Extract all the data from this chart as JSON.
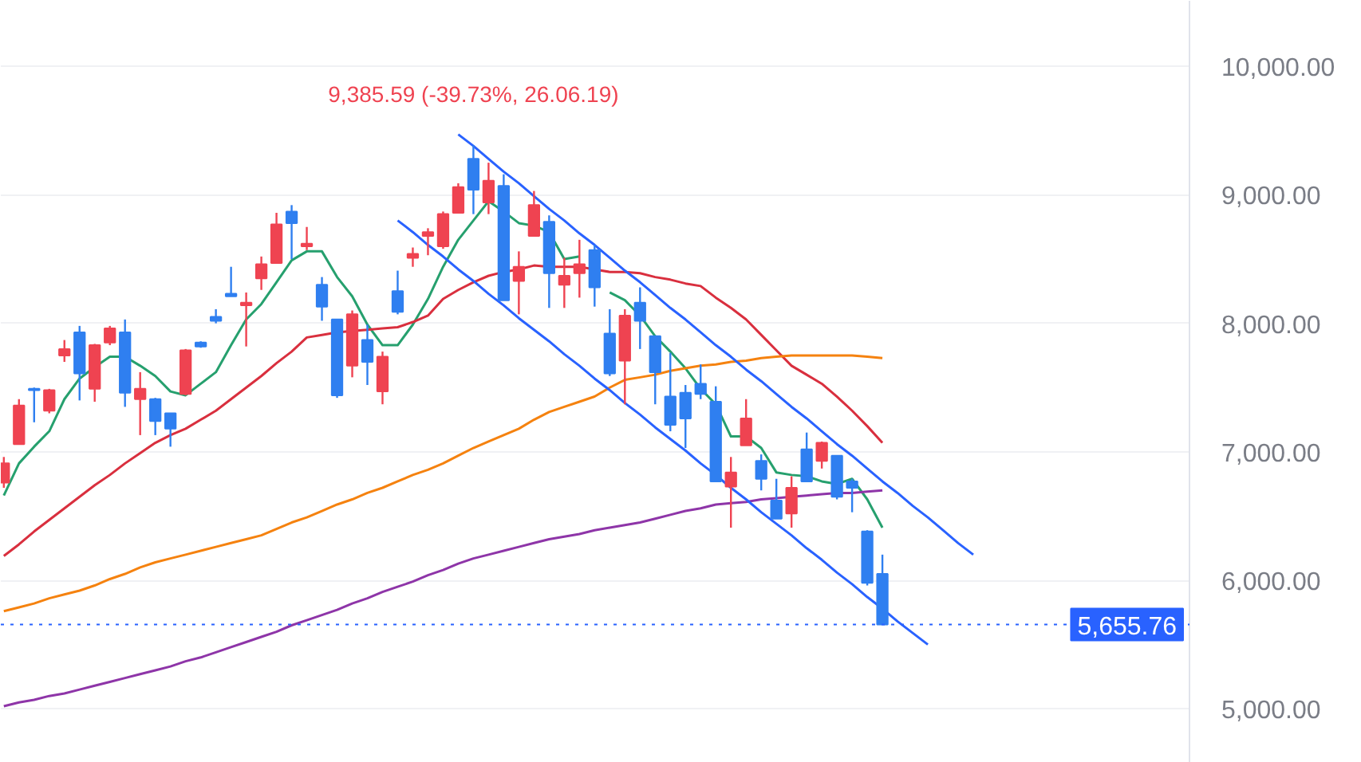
{
  "chart_data": {
    "type": "candlestick",
    "categories": [
      null,
      null,
      null,
      null,
      null,
      null,
      null,
      null,
      null,
      null,
      null,
      null,
      null,
      null,
      null,
      null,
      null,
      null,
      null,
      null,
      null,
      null,
      null,
      null,
      null,
      null,
      null,
      null,
      null,
      null,
      null,
      null,
      null,
      null,
      null,
      null,
      null,
      null,
      null,
      null,
      null,
      null,
      null,
      null,
      null,
      null,
      null,
      null,
      null,
      null,
      null,
      null,
      null,
      null,
      null,
      null,
      null,
      null,
      null,
      null,
      null,
      null,
      null,
      null,
      null
    ],
    "ohlc": [
      [
        6760,
        6960,
        6720,
        6910
      ],
      [
        7060,
        7410,
        7060,
        7360
      ],
      [
        7490,
        7500,
        7230,
        7480
      ],
      [
        7320,
        7490,
        7300,
        7480
      ],
      [
        7750,
        7870,
        7700,
        7800
      ],
      [
        7930,
        7980,
        7400,
        7610
      ],
      [
        7490,
        7840,
        7390,
        7830
      ],
      [
        7850,
        7980,
        7830,
        7960
      ],
      [
        7930,
        8030,
        7350,
        7460
      ],
      [
        7410,
        7620,
        7130,
        7490
      ],
      [
        7410,
        7420,
        7130,
        7240
      ],
      [
        7300,
        7300,
        7040,
        7180
      ],
      [
        7450,
        7800,
        7440,
        7790
      ],
      [
        7850,
        7860,
        7810,
        7820
      ],
      [
        8050,
        8110,
        8000,
        8020
      ],
      [
        8230,
        8440,
        8210,
        8210
      ],
      [
        8140,
        8240,
        7820,
        8160
      ],
      [
        8350,
        8520,
        8260,
        8460
      ],
      [
        8470,
        8860,
        8470,
        8770
      ],
      [
        8870,
        8920,
        8500,
        8780
      ],
      [
        8600,
        8750,
        8570,
        8620
      ],
      [
        8300,
        8360,
        8020,
        8130
      ],
      [
        8030,
        8030,
        7420,
        7440
      ],
      [
        7670,
        8100,
        7580,
        8070
      ],
      [
        7870,
        7990,
        7520,
        7700
      ],
      [
        7470,
        7780,
        7370,
        7740
      ],
      [
        8250,
        8410,
        8070,
        8090
      ],
      [
        8510,
        8590,
        8440,
        8540
      ],
      [
        8680,
        8740,
        8530,
        8710
      ],
      [
        8600,
        8870,
        8580,
        8850
      ],
      [
        8860,
        9090,
        8860,
        9060
      ],
      [
        9280,
        9385.59,
        8850,
        9040
      ],
      [
        8940,
        9250,
        8850,
        9110
      ],
      [
        9070,
        9160,
        8180,
        8180
      ],
      [
        8330,
        8560,
        8070,
        8440
      ],
      [
        8680,
        9030,
        8680,
        8920
      ],
      [
        8790,
        8840,
        8120,
        8390
      ],
      [
        8300,
        8510,
        8120,
        8370
      ],
      [
        8390,
        8650,
        8200,
        8460
      ],
      [
        8570,
        8610,
        8130,
        8280
      ],
      [
        7920,
        8110,
        7590,
        7610
      ],
      [
        7710,
        8110,
        7370,
        8060
      ],
      [
        8160,
        8280,
        7800,
        8020
      ],
      [
        7900,
        7900,
        7370,
        7620
      ],
      [
        7430,
        7770,
        7160,
        7210
      ],
      [
        7460,
        7520,
        7030,
        7260
      ],
      [
        7530,
        7680,
        7410,
        7450
      ],
      [
        7390,
        7510,
        6770,
        6770
      ],
      [
        6730,
        6960,
        6410,
        6840
      ],
      [
        7050,
        7410,
        7050,
        7260
      ],
      [
        6930,
        6980,
        6700,
        6790
      ],
      [
        6620,
        6790,
        6480,
        6480
      ],
      [
        6520,
        6810,
        6410,
        6720
      ],
      [
        7020,
        7150,
        6770,
        6770
      ],
      [
        6930,
        7080,
        6870,
        7070
      ],
      [
        6970,
        6970,
        6630,
        6650
      ],
      [
        6770,
        6790,
        6530,
        6720
      ],
      [
        6380,
        6390,
        5960,
        5980
      ],
      [
        6050,
        6200,
        5655.76,
        5655.76
      ],
      null,
      null,
      null,
      null,
      null,
      null
    ],
    "colors": [
      "#ef4351",
      "#ef4351",
      "#2f7ff0",
      "#ef4351",
      "#ef4351",
      "#2f7ff0",
      "#ef4351",
      "#ef4351",
      "#2f7ff0",
      "#ef4351",
      "#2f7ff0",
      "#2f7ff0",
      "#ef4351",
      "#2f7ff0",
      "#2f7ff0",
      "#2f7ff0",
      "#ef4351",
      "#ef4351",
      "#ef4351",
      "#2f7ff0",
      "#ef4351",
      "#2f7ff0",
      "#2f7ff0",
      "#ef4351",
      "#2f7ff0",
      "#ef4351",
      "#2f7ff0",
      "#ef4351",
      "#ef4351",
      "#ef4351",
      "#ef4351",
      "#2f7ff0",
      "#ef4351",
      "#2f7ff0",
      "#ef4351",
      "#ef4351",
      "#2f7ff0",
      "#ef4351",
      "#ef4351",
      "#2f7ff0",
      "#2f7ff0",
      "#ef4351",
      "#2f7ff0",
      "#2f7ff0",
      "#2f7ff0",
      "#2f7ff0",
      "#2f7ff0",
      "#2f7ff0",
      "#ef4351",
      "#ef4351",
      "#2f7ff0",
      "#2f7ff0",
      "#ef4351",
      "#2f7ff0",
      "#ef4351",
      "#2f7ff0",
      "#2f7ff0",
      "#2f7ff0",
      "#2f7ff0",
      null,
      null,
      null,
      null,
      null,
      null
    ],
    "series": [
      {
        "type": "line",
        "color": "#26a06e",
        "values": [
          6660,
          6910,
          7040,
          7160,
          7410,
          7570,
          7660,
          7740,
          7740,
          7670,
          7590,
          7470,
          7440,
          7530,
          7620,
          7830,
          8030,
          8150,
          8320,
          8490,
          8560,
          8560,
          8360,
          8210,
          7990,
          7830,
          7830,
          7990,
          8190,
          8440,
          8650,
          8800,
          8950,
          8870,
          8780,
          8760,
          8710,
          8500,
          8520,
          null,
          8240,
          8180,
          8060,
          7900,
          7780,
          7650,
          7490,
          7370,
          7120,
          7120,
          7030,
          6840,
          6820,
          6810,
          6770,
          6750,
          6790,
          6630,
          6410,
          null,
          null,
          null,
          null,
          null,
          null
        ]
      },
      {
        "type": "line",
        "color": "#d92f3e",
        "values": [
          6190,
          6280,
          6380,
          6470,
          6560,
          6650,
          6740,
          6820,
          6910,
          6990,
          7070,
          7130,
          7180,
          7250,
          7320,
          7410,
          7500,
          7590,
          7690,
          7780,
          7890,
          7910,
          7930,
          7940,
          7950,
          7960,
          7970,
          8010,
          8060,
          8190,
          8260,
          8320,
          8370,
          8400,
          8420,
          8450,
          8440,
          8440,
          8440,
          8420,
          8400,
          8400,
          8390,
          8360,
          8340,
          8310,
          8290,
          8200,
          8120,
          8030,
          7910,
          7790,
          7670,
          7600,
          7530,
          7430,
          7320,
          7200,
          7070,
          null,
          null,
          null,
          null,
          null,
          null
        ]
      },
      {
        "type": "line",
        "color": "#f5820f",
        "values": [
          5760,
          5790,
          5820,
          5860,
          5890,
          5920,
          5960,
          6010,
          6050,
          6100,
          6140,
          6170,
          6200,
          6230,
          6260,
          6290,
          6320,
          6350,
          6400,
          6450,
          6490,
          6540,
          6590,
          6630,
          6680,
          6720,
          6770,
          6820,
          6860,
          6910,
          6970,
          7030,
          7080,
          7130,
          7180,
          7250,
          7310,
          7350,
          7390,
          7430,
          7500,
          7560,
          7580,
          7600,
          7630,
          7650,
          7670,
          7680,
          7700,
          7710,
          7730,
          7740,
          7750,
          7750,
          7750,
          7750,
          7750,
          7740,
          7730,
          null,
          null,
          null,
          null,
          null,
          null
        ]
      },
      {
        "type": "line",
        "color": "#8e35a8",
        "values": [
          5020,
          5050,
          5070,
          5100,
          5120,
          5150,
          5180,
          5210,
          5240,
          5270,
          5300,
          5330,
          5370,
          5400,
          5440,
          5480,
          5520,
          5560,
          5600,
          5650,
          5690,
          5730,
          5770,
          5820,
          5860,
          5910,
          5950,
          5990,
          6040,
          6080,
          6130,
          6170,
          6200,
          6230,
          6260,
          6290,
          6320,
          6340,
          6360,
          6390,
          6410,
          6430,
          6450,
          6480,
          6510,
          6540,
          6560,
          6590,
          6600,
          6610,
          6630,
          6640,
          6650,
          6660,
          6670,
          6680,
          6680,
          6690,
          6700,
          null,
          null,
          null,
          null,
          null,
          null
        ]
      },
      {
        "type": "line",
        "color": "#2962ff",
        "values": [
          null,
          null,
          null,
          null,
          null,
          null,
          null,
          null,
          null,
          null,
          null,
          null,
          null,
          null,
          null,
          null,
          null,
          null,
          null,
          null,
          null,
          null,
          null,
          null,
          null,
          null,
          null,
          null,
          null,
          null,
          9470,
          9380,
          9280,
          9180,
          9090,
          8990,
          8890,
          8800,
          8700,
          8610,
          8510,
          8410,
          8320,
          8220,
          8120,
          8030,
          7930,
          7830,
          7740,
          7640,
          7550,
          7450,
          7350,
          7260,
          7160,
          7060,
          6970,
          6870,
          6770,
          6680,
          6580,
          6490,
          6390,
          6290,
          6200
        ]
      },
      {
        "type": "line",
        "color": "#2962ff",
        "values": [
          null,
          null,
          null,
          null,
          null,
          null,
          null,
          null,
          null,
          null,
          null,
          null,
          null,
          null,
          null,
          null,
          null,
          null,
          null,
          null,
          null,
          null,
          null,
          null,
          null,
          null,
          8800,
          8710,
          8610,
          8520,
          8420,
          8330,
          8230,
          8140,
          8040,
          7950,
          7860,
          7760,
          7670,
          7570,
          7480,
          7380,
          7290,
          7190,
          7100,
          7010,
          6910,
          6820,
          6720,
          6630,
          6530,
          6440,
          6350,
          6250,
          6160,
          6060,
          5970,
          5870,
          5780,
          5680,
          5590,
          5500,
          null,
          null,
          null
        ]
      }
    ],
    "ylim": [
      4580,
      10510
    ],
    "yticks": [
      {
        "value": 5000,
        "label": "5,000.00"
      },
      {
        "value": 6000,
        "label": "6,000.00"
      },
      {
        "value": 7000,
        "label": "7,000.00"
      },
      {
        "value": 8000,
        "label": "8,000.00"
      },
      {
        "value": 9000,
        "label": "9,000.00"
      },
      {
        "value": 10000,
        "label": "10,000.00"
      }
    ],
    "tick_labels": "y",
    "grid": "y",
    "ref_lines": [
      {
        "axis": "y",
        "value": 5655.76,
        "label": "5,655.76",
        "color": "#2962ff",
        "line_style": "dotted"
      }
    ],
    "annotations": [
      {
        "text": "9,385.59 (-39.73%, 26.06.19)",
        "y": 9385.59
      }
    ]
  }
}
